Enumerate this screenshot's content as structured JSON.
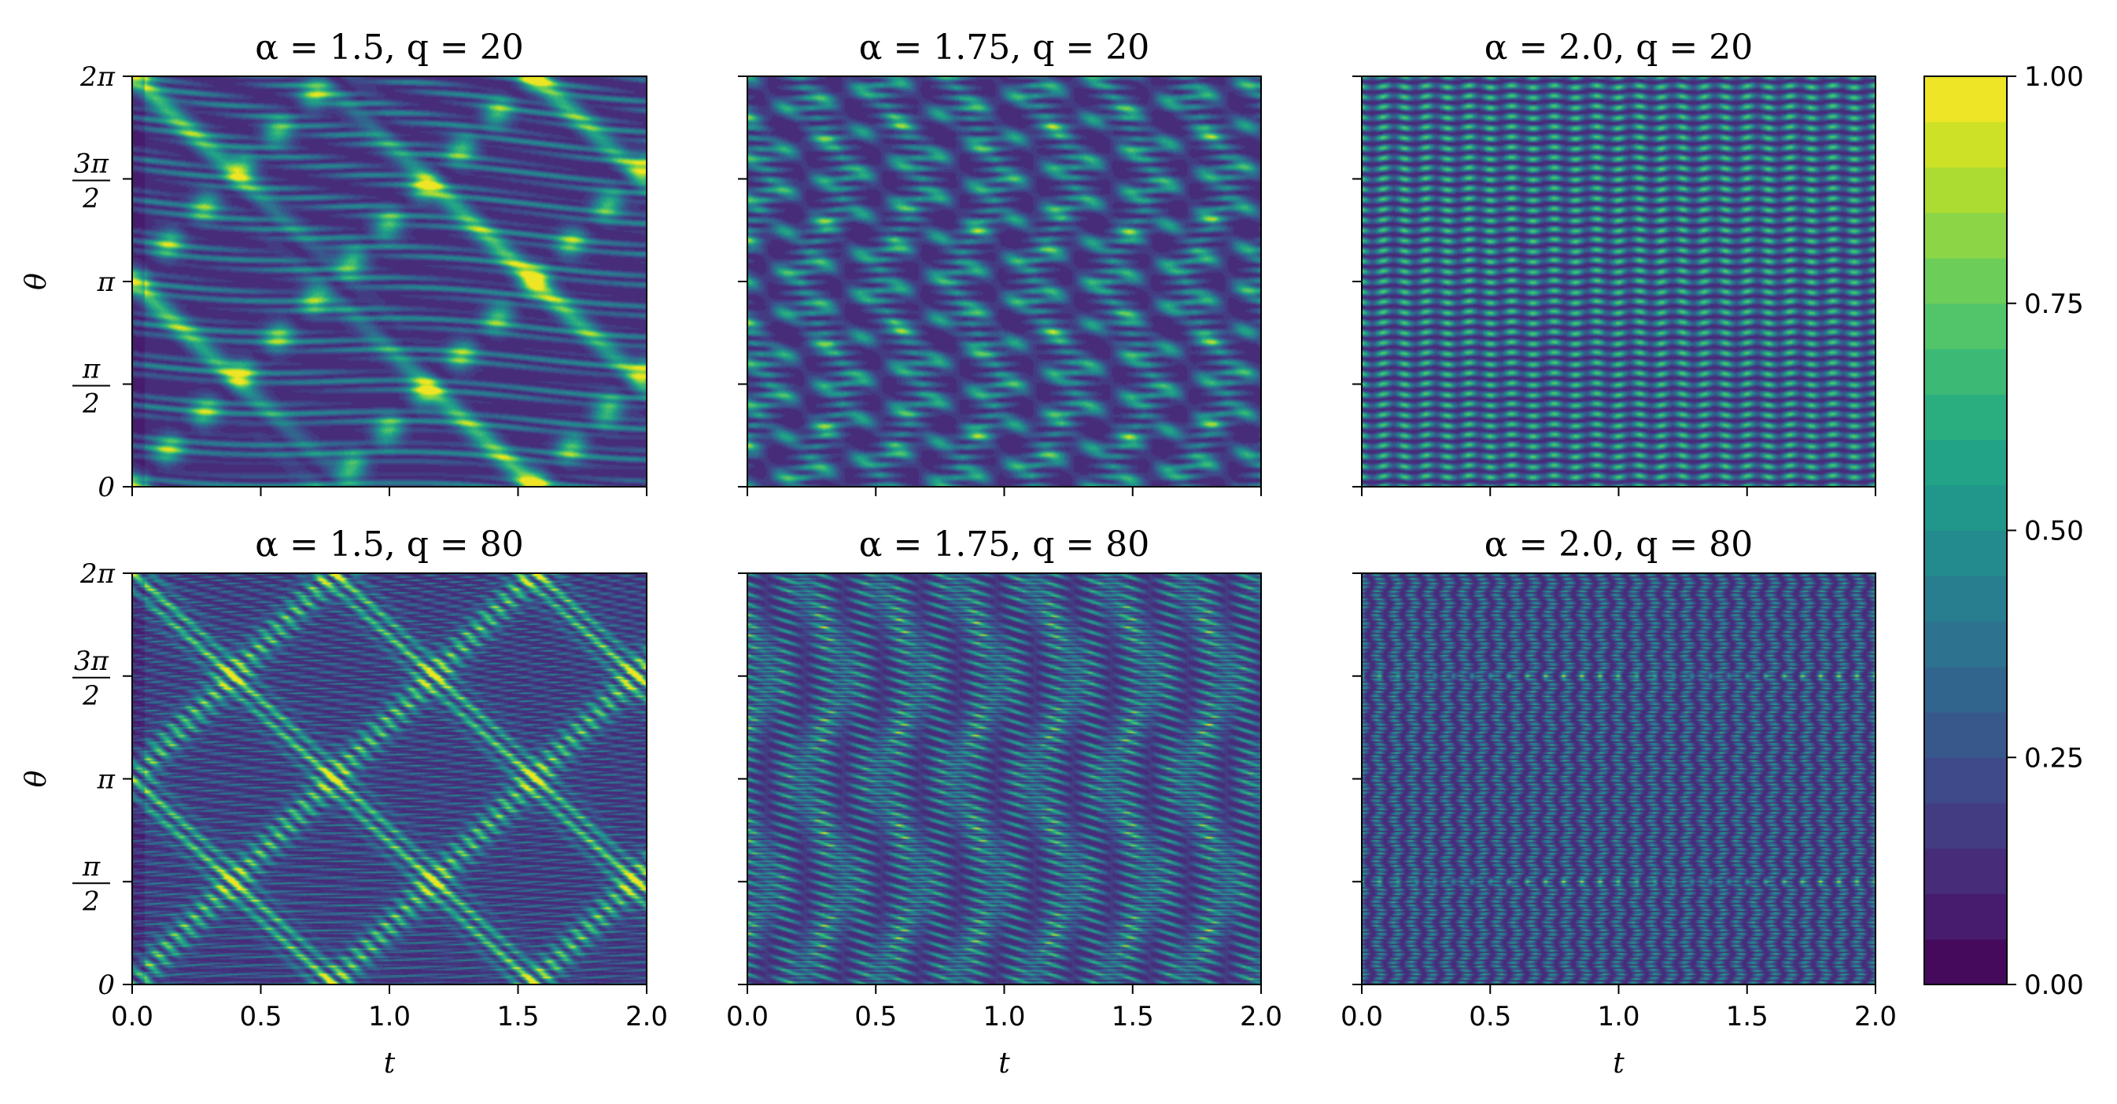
{
  "chart_data": {
    "type": "heatmap",
    "layout": "2 rows x 3 columns of contour-filled heatmaps with one shared colorbar on the right",
    "colormap": "viridis",
    "shared": {
      "x_label": "t",
      "y_label": "θ",
      "x_range": [
        0.0,
        2.0
      ],
      "y_range": [
        "0",
        "2π"
      ],
      "x_tick_labels": [
        "0.0",
        "0.5",
        "1.0",
        "1.5",
        "2.0"
      ],
      "y_tick_labels": [
        {
          "num": "",
          "den": "",
          "text": "0"
        },
        {
          "num": "π",
          "den": "2",
          "text": ""
        },
        {
          "num": "",
          "den": "",
          "text": "π"
        },
        {
          "num": "3π",
          "den": "2",
          "text": ""
        },
        {
          "num": "",
          "den": "",
          "text": "2π"
        }
      ],
      "x_tick_values": [
        0.0,
        0.5,
        1.0,
        1.5,
        2.0
      ],
      "y_tick_values": [
        0.0,
        0.25,
        0.5,
        0.75,
        1.0
      ]
    },
    "panels": [
      {
        "title": "α = 1.5, q = 20",
        "alpha": 1.5,
        "q": 20
      },
      {
        "title": "α = 1.75, q = 20",
        "alpha": 1.75,
        "q": 20
      },
      {
        "title": "α = 2.0, q = 20",
        "alpha": 2.0,
        "q": 20
      },
      {
        "title": "α = 1.5, q = 80",
        "alpha": 1.5,
        "q": 80
      },
      {
        "title": "α = 1.75, q = 80",
        "alpha": 1.75,
        "q": 80
      },
      {
        "title": "α = 2.0, q = 80",
        "alpha": 2.0,
        "q": 80
      }
    ],
    "colorbar": {
      "range": [
        0.0,
        1.0
      ],
      "levels": 20,
      "tick_labels": [
        "0.00",
        "0.25",
        "0.50",
        "0.75",
        "1.00"
      ],
      "tick_values": [
        0.0,
        0.25,
        0.5,
        0.75,
        1.0
      ]
    }
  }
}
